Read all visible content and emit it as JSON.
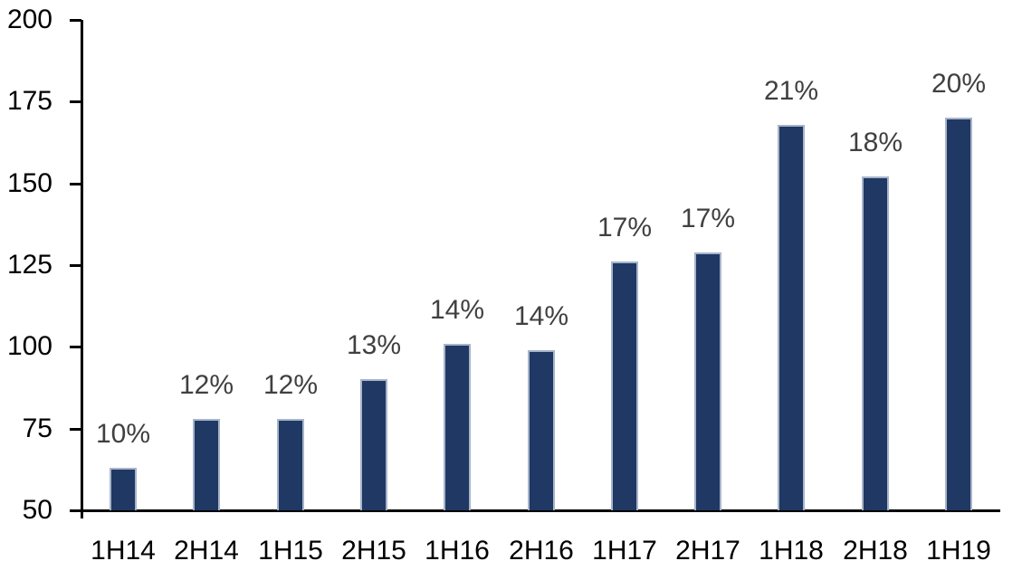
{
  "chart_data": {
    "type": "bar",
    "title": "",
    "xlabel": "",
    "ylabel": "",
    "categories": [
      "1H14",
      "2H14",
      "1H15",
      "2H15",
      "1H16",
      "2H16",
      "1H17",
      "2H17",
      "1H18",
      "2H18",
      "1H19"
    ],
    "values": [
      63,
      78,
      78,
      90,
      101,
      99,
      126,
      129,
      168,
      152,
      170
    ],
    "bar_labels": [
      "10%",
      "12%",
      "12%",
      "13%",
      "14%",
      "14%",
      "17%",
      "17%",
      "21%",
      "18%",
      "20%"
    ],
    "y_ticks": [
      200,
      175,
      150,
      125,
      100,
      75,
      50
    ],
    "ylim": [
      50,
      200
    ],
    "grid": false,
    "legend": "none",
    "colors": {
      "bar_fill": "#1f3864",
      "bar_border": "#a7b4ca",
      "data_label": "#404040",
      "axis_label": "#000000",
      "axis_line": "#000000",
      "background": "#ffffff"
    }
  }
}
